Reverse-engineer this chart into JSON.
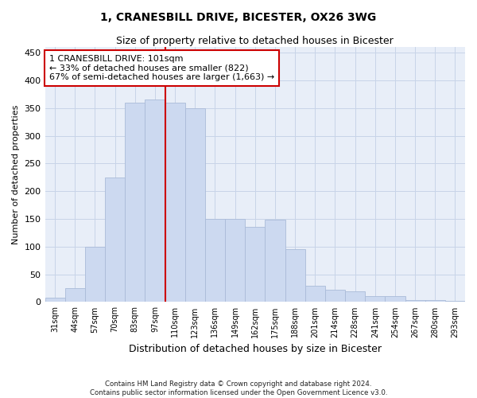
{
  "title": "1, CRANESBILL DRIVE, BICESTER, OX26 3WG",
  "subtitle": "Size of property relative to detached houses in Bicester",
  "xlabel": "Distribution of detached houses by size in Bicester",
  "ylabel": "Number of detached properties",
  "footnote1": "Contains HM Land Registry data © Crown copyright and database right 2024.",
  "footnote2": "Contains public sector information licensed under the Open Government Licence v3.0.",
  "categories": [
    "31sqm",
    "44sqm",
    "57sqm",
    "70sqm",
    "83sqm",
    "97sqm",
    "110sqm",
    "123sqm",
    "136sqm",
    "149sqm",
    "162sqm",
    "175sqm",
    "188sqm",
    "201sqm",
    "214sqm",
    "228sqm",
    "241sqm",
    "254sqm",
    "267sqm",
    "280sqm",
    "293sqm"
  ],
  "values": [
    8,
    25,
    100,
    225,
    360,
    365,
    360,
    350,
    150,
    150,
    135,
    148,
    95,
    30,
    22,
    20,
    10,
    10,
    3,
    4,
    2
  ],
  "bar_color": "#ccd9f0",
  "bar_edge_color": "#aabbd8",
  "bg_color": "#e8eef8",
  "grid_color": "#c8d4e8",
  "vline_color": "#cc0000",
  "vline_x_index": 5,
  "annotation_text": "1 CRANESBILL DRIVE: 101sqm\n← 33% of detached houses are smaller (822)\n67% of semi-detached houses are larger (1,663) →",
  "annotation_box_facecolor": "#ffffff",
  "annotation_box_edgecolor": "#cc0000",
  "ylim": [
    0,
    460
  ],
  "yticks": [
    0,
    50,
    100,
    150,
    200,
    250,
    300,
    350,
    400,
    450
  ],
  "title_fontsize": 10,
  "subtitle_fontsize": 9
}
